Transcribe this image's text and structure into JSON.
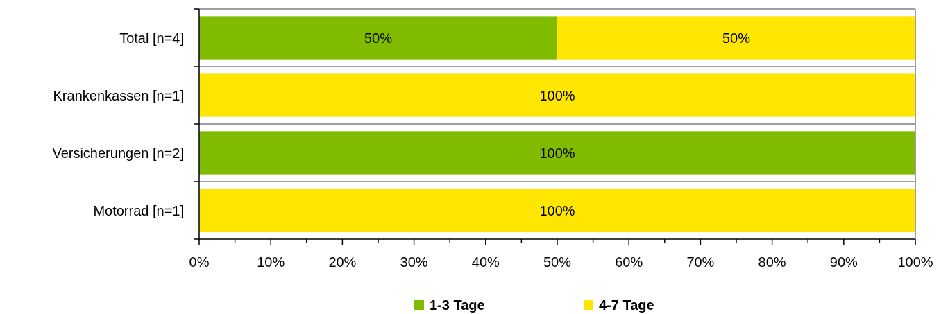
{
  "chart_data": {
    "type": "bar",
    "orientation": "horizontal",
    "stacked": true,
    "categories": [
      "Total [n=4]",
      "Krankenkassen [n=1]",
      "Versicherungen [n=2]",
      "Motorrad [n=1]"
    ],
    "series": [
      {
        "name": "1-3 Tage",
        "color": "#80bb00",
        "values": [
          50,
          0,
          100,
          0
        ],
        "value_labels": [
          "50%",
          null,
          "100%",
          null
        ]
      },
      {
        "name": "4-7 Tage",
        "color": "#ffe600",
        "values": [
          50,
          100,
          0,
          100
        ],
        "value_labels": [
          "50%",
          "100%",
          null,
          "100%"
        ]
      }
    ],
    "xlim": [
      0,
      100
    ],
    "xticks": [
      {
        "value": 0,
        "label": "0%"
      },
      {
        "value": 5,
        "label": null
      },
      {
        "value": 10,
        "label": "10%"
      },
      {
        "value": 15,
        "label": null
      },
      {
        "value": 20,
        "label": "20%"
      },
      {
        "value": 25,
        "label": null
      },
      {
        "value": 30,
        "label": "30%"
      },
      {
        "value": 35,
        "label": null
      },
      {
        "value": 40,
        "label": "40%"
      },
      {
        "value": 45,
        "label": null
      },
      {
        "value": 50,
        "label": "50%"
      },
      {
        "value": 55,
        "label": null
      },
      {
        "value": 60,
        "label": "60%"
      },
      {
        "value": 65,
        "label": null
      },
      {
        "value": 70,
        "label": "70%"
      },
      {
        "value": 75,
        "label": null
      },
      {
        "value": 80,
        "label": "80%"
      },
      {
        "value": 85,
        "label": null
      },
      {
        "value": 90,
        "label": "90%"
      },
      {
        "value": 95,
        "label": null
      },
      {
        "value": 100,
        "label": "100%"
      }
    ],
    "grid": "y",
    "legend": "bottom"
  }
}
